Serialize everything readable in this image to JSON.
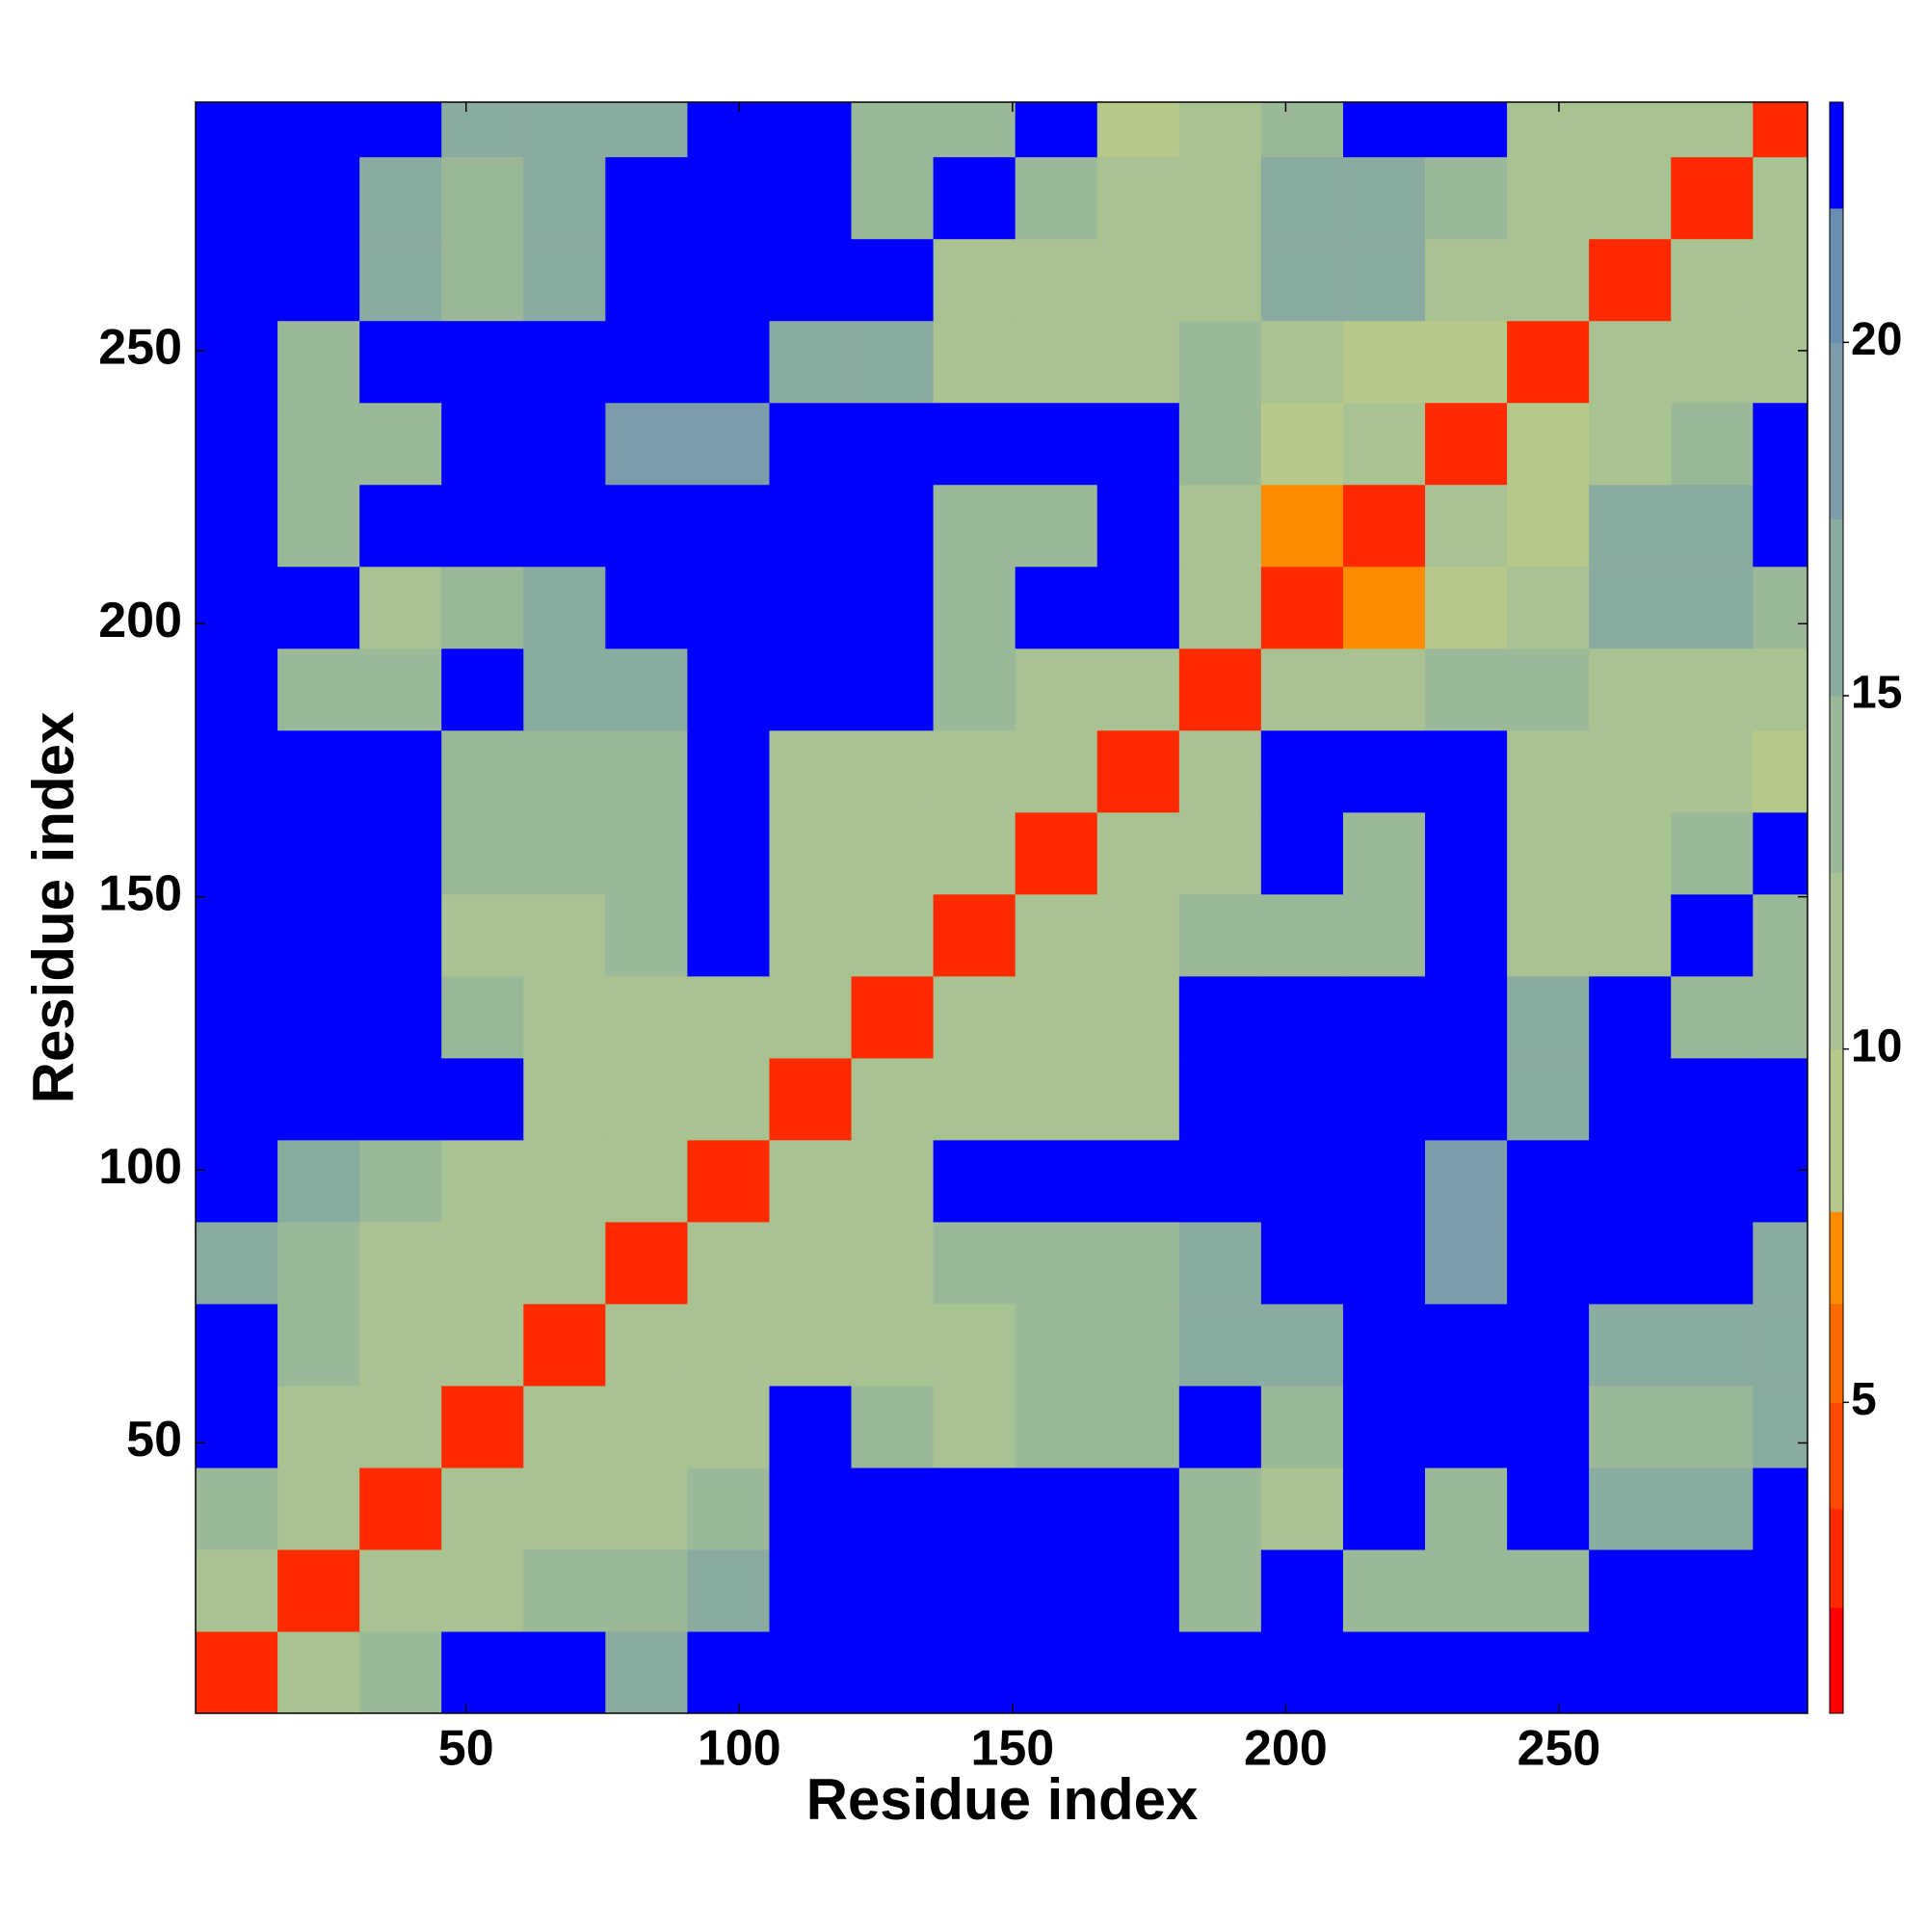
{
  "chart_data": {
    "type": "heatmap",
    "xlabel": "Residue index",
    "ylabel": "Residue index",
    "xbins": [
      0.5,
      15.5,
      30.5,
      45.5,
      60.5,
      75.5,
      90.5,
      105.5,
      120.5,
      135.5,
      150.5,
      165.5,
      180.5,
      195.5,
      210.5,
      225.5,
      240.5,
      255.5,
      270.5,
      285.5,
      295.5
    ],
    "ybins": [
      0.5,
      15.5,
      30.5,
      45.5,
      60.5,
      75.5,
      90.5,
      105.5,
      120.5,
      135.5,
      150.5,
      165.5,
      180.5,
      195.5,
      210.5,
      225.5,
      240.5,
      255.5,
      270.5,
      285.5,
      295.5
    ],
    "z": [
      [
        3,
        10,
        14,
        23,
        23,
        16,
        23,
        23,
        23,
        23,
        23,
        23,
        23,
        23,
        23,
        23,
        23,
        23,
        23,
        23
      ],
      [
        10,
        3,
        10,
        12,
        13,
        14,
        15,
        23,
        23,
        23,
        23,
        23,
        13,
        23,
        14,
        13,
        14,
        23,
        23,
        23
      ],
      [
        14,
        10,
        3,
        10,
        11,
        12,
        14,
        23,
        23,
        23,
        23,
        23,
        14,
        12,
        23,
        14,
        23,
        15,
        15,
        23
      ],
      [
        23,
        12,
        10,
        3,
        10,
        11,
        12,
        23,
        13,
        12,
        14,
        13,
        23,
        14,
        23,
        23,
        23,
        14,
        14,
        15
      ],
      [
        23,
        13,
        11,
        10,
        3,
        10,
        11,
        11,
        12,
        12,
        13,
        13,
        16,
        17,
        23,
        23,
        23,
        15,
        16,
        15
      ],
      [
        16,
        14,
        12,
        11,
        10,
        3,
        10,
        11,
        12,
        13,
        14,
        14,
        16,
        23,
        23,
        18,
        23,
        23,
        23,
        16
      ],
      [
        23,
        15,
        14,
        12,
        11,
        10,
        3,
        10,
        11,
        23,
        23,
        23,
        23,
        23,
        23,
        18,
        23,
        23,
        23,
        23
      ],
      [
        23,
        23,
        23,
        23,
        11,
        11,
        10,
        3,
        10,
        12,
        11,
        12,
        23,
        23,
        23,
        23,
        15,
        23,
        23,
        23
      ],
      [
        23,
        23,
        23,
        13,
        12,
        12,
        11,
        10,
        3,
        10,
        12,
        11,
        23,
        23,
        23,
        23,
        15,
        23,
        14,
        14
      ],
      [
        23,
        23,
        23,
        12,
        12,
        13,
        23,
        12,
        10,
        3,
        10,
        11,
        14,
        13,
        14,
        23,
        12,
        12,
        23,
        13
      ],
      [
        23,
        23,
        23,
        14,
        13,
        14,
        23,
        11,
        12,
        10,
        3,
        10,
        12,
        23,
        13,
        23,
        12,
        12,
        13,
        23
      ],
      [
        23,
        23,
        23,
        13,
        13,
        14,
        23,
        12,
        11,
        11,
        10,
        3,
        10,
        23,
        23,
        23,
        12,
        12,
        12,
        8
      ],
      [
        23,
        13,
        14,
        23,
        16,
        16,
        23,
        23,
        23,
        14,
        12,
        10,
        3,
        10,
        12,
        13,
        13,
        12,
        12,
        12
      ],
      [
        23,
        23,
        12,
        14,
        17,
        23,
        23,
        23,
        23,
        13,
        23,
        23,
        10,
        3,
        7,
        9,
        12,
        15,
        15,
        13
      ],
      [
        23,
        14,
        23,
        23,
        23,
        23,
        23,
        23,
        23,
        14,
        13,
        23,
        12,
        7,
        3,
        10,
        8,
        16,
        15,
        23
      ],
      [
        23,
        13,
        14,
        23,
        23,
        18,
        18,
        23,
        23,
        23,
        23,
        23,
        13,
        9,
        10,
        3,
        8,
        11,
        13,
        23
      ],
      [
        23,
        14,
        23,
        23,
        23,
        23,
        23,
        15,
        15,
        12,
        12,
        12,
        13,
        12,
        8,
        8,
        3,
        10,
        10,
        11
      ],
      [
        23,
        23,
        15,
        14,
        15,
        23,
        23,
        23,
        23,
        12,
        12,
        12,
        12,
        15,
        16,
        11,
        10,
        3,
        10,
        10
      ],
      [
        23,
        23,
        15,
        14,
        16,
        23,
        23,
        23,
        14,
        23,
        13,
        12,
        12,
        15,
        15,
        13,
        10,
        10,
        3,
        10
      ],
      [
        23,
        23,
        23,
        15,
        15,
        16,
        23,
        23,
        14,
        13,
        23,
        8,
        12,
        13,
        23,
        23,
        11,
        10,
        10,
        3
      ]
    ],
    "xlim": [
      0.5,
      295.5
    ],
    "ylim": [
      0.5,
      295.5
    ],
    "xticks": [
      50,
      100,
      150,
      200,
      250
    ],
    "yticks": [
      50,
      100,
      150,
      200,
      250
    ],
    "colorbar": {
      "lim": [
        0.6,
        23.4
      ],
      "ticks": [
        5,
        10,
        15,
        20
      ],
      "bounds": [
        0.6,
        2.1,
        3.5,
        5,
        6.4,
        7.7,
        10,
        12.5,
        15,
        17.5,
        20,
        21.9,
        23.4
      ],
      "colors": [
        "#ff0000",
        "#ff2a00",
        "#ff4a00",
        "#ff6a00",
        "#ff8c00",
        "#b7c98a",
        "#a8c291",
        "#9bb998",
        "#8aab9f",
        "#7b9ca8",
        "#6a8eb2",
        "#0000ff"
      ]
    }
  }
}
